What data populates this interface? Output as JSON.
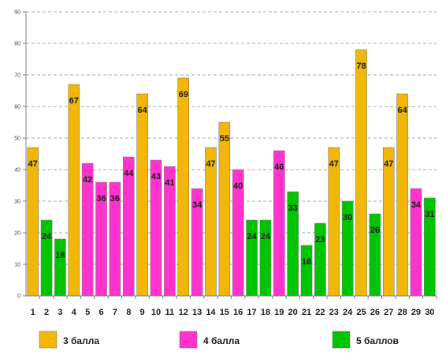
{
  "chart_data": {
    "type": "bar",
    "categories": [
      "1",
      "2",
      "3",
      "4",
      "5",
      "6",
      "7",
      "8",
      "9",
      "10",
      "11",
      "12",
      "13",
      "14",
      "15",
      "16",
      "17",
      "18",
      "19",
      "20",
      "21",
      "22",
      "23",
      "24",
      "25",
      "26",
      "27",
      "28",
      "29",
      "30"
    ],
    "values": [
      47,
      24,
      18,
      67,
      42,
      36,
      36,
      44,
      64,
      43,
      41,
      69,
      34,
      47,
      55,
      40,
      24,
      24,
      46,
      33,
      16,
      23,
      47,
      30,
      78,
      26,
      47,
      64,
      34,
      31
    ],
    "grades": [
      3,
      5,
      5,
      3,
      4,
      4,
      4,
      4,
      3,
      4,
      4,
      3,
      4,
      3,
      3,
      4,
      5,
      5,
      4,
      5,
      5,
      5,
      3,
      5,
      3,
      5,
      3,
      3,
      4,
      5
    ],
    "data_labels": [
      "47",
      "24",
      "18",
      "67",
      "42",
      "36",
      "36",
      "44",
      "64",
      "43",
      "41",
      "69",
      "34",
      "47",
      "55",
      "40",
      "24",
      "24",
      "46",
      "33",
      "16",
      "23",
      "47",
      "30",
      "78",
      "26",
      "47",
      "64",
      "34",
      "31"
    ],
    "ylim": [
      0,
      90
    ],
    "yticks": [
      "0",
      "10",
      "20",
      "30",
      "40",
      "50",
      "60",
      "70",
      "80",
      "90"
    ],
    "grid": true,
    "legend_placement": "bottom",
    "legend": [
      {
        "grade": 3,
        "label": "3 балла",
        "color": "#f2b705"
      },
      {
        "grade": 4,
        "label": "4 балла",
        "color": "#ff33cc"
      },
      {
        "grade": 5,
        "label": "5 баллов",
        "color": "#00c400"
      }
    ],
    "colors": {
      "grid": "#8c8c8c",
      "axis": "#808080",
      "bar_edge": "#7a7a7a"
    }
  }
}
